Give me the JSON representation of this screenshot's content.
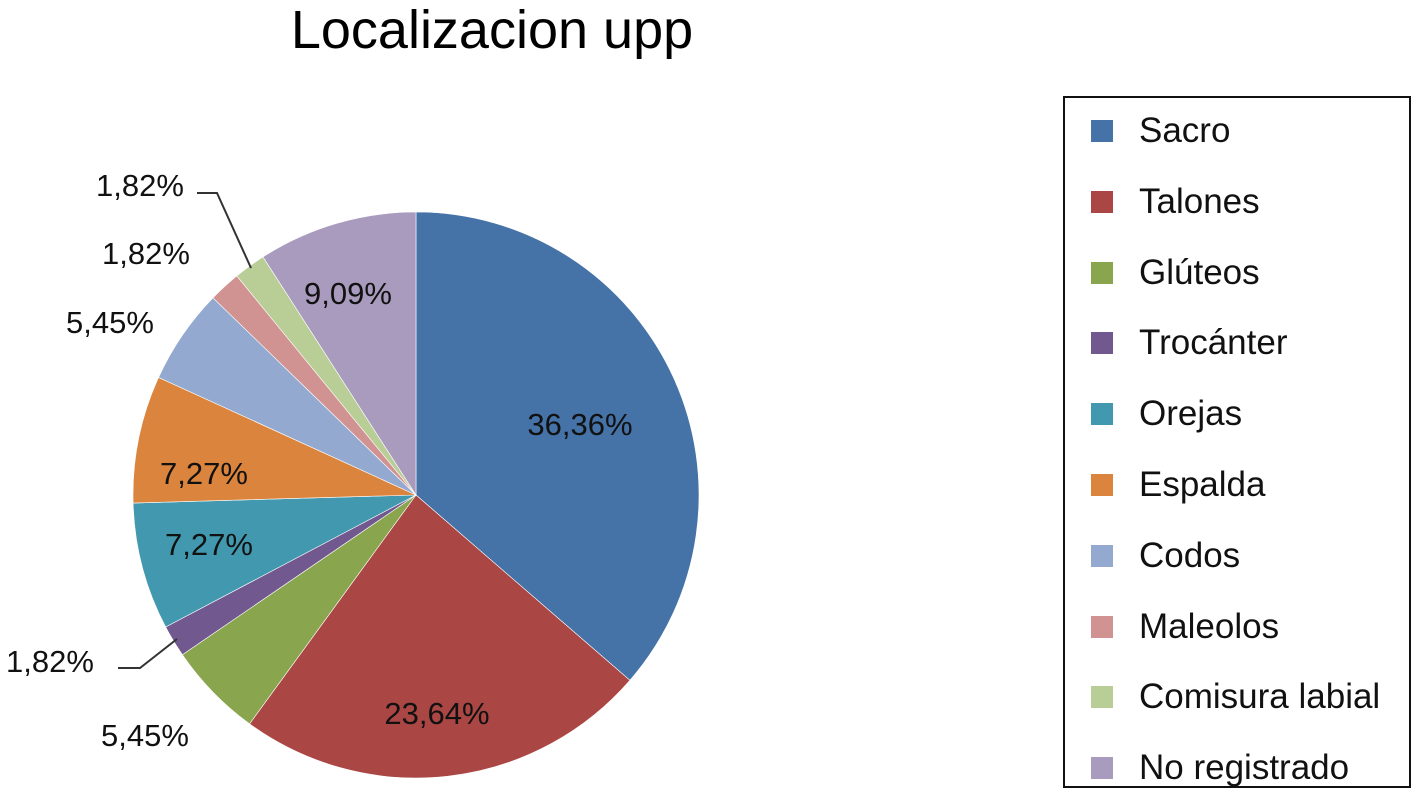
{
  "chart_data": {
    "type": "pie",
    "title": "Localizacion upp",
    "legend_position": "right",
    "slices": [
      {
        "name": "Sacro",
        "value": 36.36,
        "label": "36,36%",
        "color": "#4572A7"
      },
      {
        "name": "Talones",
        "value": 23.64,
        "label": "23,64%",
        "color": "#AA4643"
      },
      {
        "name": "Glúteos",
        "value": 5.45,
        "label": "5,45%",
        "color": "#89A54E"
      },
      {
        "name": "Trocánter",
        "value": 1.82,
        "label": "1,82%",
        "color": "#71588F"
      },
      {
        "name": "Orejas",
        "value": 7.27,
        "label": "7,27%",
        "color": "#4198AF"
      },
      {
        "name": "Espalda",
        "value": 7.27,
        "label": "7,27%",
        "color": "#DB843D"
      },
      {
        "name": "Codos",
        "value": 5.45,
        "label": "5,45%",
        "color": "#93A9CF"
      },
      {
        "name": "Maleolos",
        "value": 1.82,
        "label": "1,82%",
        "color": "#D19392"
      },
      {
        "name": "Comisura labial",
        "value": 1.82,
        "label": "1,82%",
        "color": "#B9CD96"
      },
      {
        "name": "No registrado",
        "value": 9.09,
        "label": "9,09%",
        "color": "#A99BBD"
      }
    ]
  }
}
